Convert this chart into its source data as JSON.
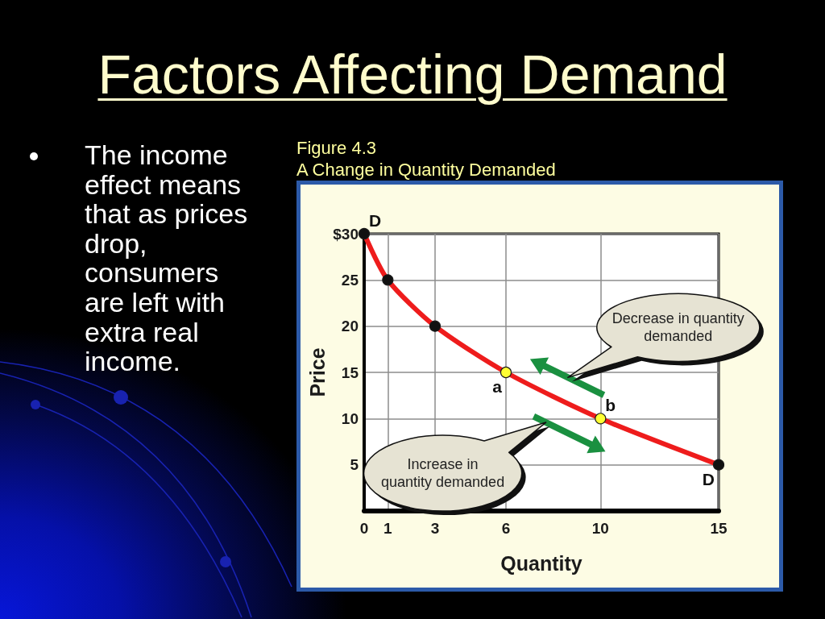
{
  "chart_data": {
    "type": "line",
    "title": "Factors Affecting Demand",
    "subtitle": "A Change in Quantity Demanded",
    "xlabel": "Quantity",
    "ylabel": "Price",
    "x": [
      0,
      1,
      3,
      6,
      10,
      15
    ],
    "values": [
      30,
      25,
      20,
      15,
      10,
      5
    ],
    "color": "#ee1c1c",
    "colors": [
      "#111111",
      "#111111",
      "#111111",
      "#ffff33",
      "#ffff33",
      "#111111"
    ],
    "xlim": [
      0,
      15
    ],
    "ylim": [
      0,
      30
    ],
    "xticks": [
      0,
      1,
      3,
      6,
      10,
      15
    ],
    "yticks": [
      5,
      10,
      15,
      20,
      25,
      {
        "value": 30,
        "label": "$30"
      }
    ],
    "grid": true,
    "marker": "circle",
    "line_style": "solid",
    "annotations": [
      {
        "text": "D",
        "x": 0,
        "y": 30
      },
      {
        "text": "a",
        "x": 6,
        "y": 15
      },
      {
        "text": "b",
        "x": 10,
        "y": 10
      },
      {
        "text": "D",
        "x": 15,
        "y": 5
      },
      "Decrease in quantity demanded",
      "Increase in quantity demanded",
      "Figure 4.3",
      "The income effect means that as prices drop, consumers are left with extra real income."
    ]
  }
}
